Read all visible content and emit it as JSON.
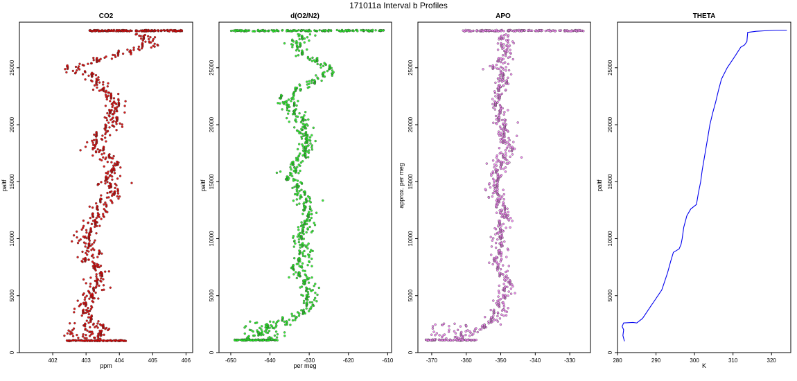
{
  "title": "171011a   Interval b Profiles",
  "chart_data": [
    {
      "type": "scatter",
      "title": "CO2",
      "xlabel": "ppm",
      "ylabel": "paltf",
      "xlim": [
        401.0,
        406.2
      ],
      "ylim": [
        0,
        29000
      ],
      "xticks": [
        "402",
        "403",
        "404",
        "405",
        "406"
      ],
      "yticks": [
        "0",
        "5000",
        "10000",
        "15000",
        "20000",
        "25000"
      ],
      "marker": "open-circle",
      "color": "#dd0000",
      "series": [
        {
          "profile": [
            [
              1200,
              403.3
            ],
            [
              2000,
              403.5
            ],
            [
              3000,
              403.1
            ],
            [
              4000,
              402.9
            ],
            [
              5000,
              403.2
            ],
            [
              6000,
              403.3
            ],
            [
              7000,
              403.4
            ],
            [
              8000,
              403.0
            ],
            [
              9000,
              403.2
            ],
            [
              10000,
              402.9
            ],
            [
              11000,
              403.1
            ],
            [
              12000,
              403.4
            ],
            [
              13000,
              403.5
            ],
            [
              14000,
              403.9
            ],
            [
              15000,
              403.7
            ],
            [
              16000,
              403.8
            ],
            [
              17000,
              403.6
            ],
            [
              18000,
              403.3
            ],
            [
              19000,
              403.4
            ],
            [
              20000,
              403.9
            ],
            [
              21000,
              403.8
            ],
            [
              22000,
              403.9
            ],
            [
              23000,
              403.6
            ],
            [
              24000,
              403.2
            ],
            [
              25000,
              402.6
            ],
            [
              26000,
              403.8
            ],
            [
              27000,
              405.0
            ],
            [
              28200,
              404.5
            ]
          ],
          "spread": 0.45,
          "surface_band": {
            "y": 1050,
            "x": [
              402.4,
              404.2
            ]
          },
          "top_band": {
            "y": 28250,
            "x": [
              403.1,
              405.9
            ]
          },
          "bottom_tail": {
            "y": [
              1200,
              2600
            ],
            "x": [
              402.4,
              403.3
            ]
          }
        }
      ]
    },
    {
      "type": "scatter",
      "title": "d(O2/N2)",
      "xlabel": "per meg",
      "ylabel": "paltf",
      "xlim": [
        -653,
        -609
      ],
      "ylim": [
        0,
        29000
      ],
      "xticks": [
        "-650",
        "-640",
        "-630",
        "-620",
        "-610"
      ],
      "yticks": [
        "0",
        "5000",
        "10000",
        "15000",
        "20000",
        "25000"
      ],
      "marker": "open-circle",
      "color": "#22ee22",
      "series": [
        {
          "profile": [
            [
              1100,
              -646
            ],
            [
              2000,
              -640
            ],
            [
              3000,
              -634
            ],
            [
              4000,
              -629
            ],
            [
              5000,
              -630
            ],
            [
              6000,
              -630
            ],
            [
              7000,
              -633
            ],
            [
              8000,
              -632
            ],
            [
              9000,
              -631
            ],
            [
              10000,
              -633
            ],
            [
              11000,
              -631
            ],
            [
              12000,
              -630
            ],
            [
              13000,
              -631
            ],
            [
              14000,
              -632
            ],
            [
              15000,
              -634
            ],
            [
              16000,
              -635
            ],
            [
              17000,
              -632
            ],
            [
              18000,
              -630
            ],
            [
              19000,
              -631
            ],
            [
              20000,
              -632
            ],
            [
              21000,
              -634
            ],
            [
              22000,
              -636
            ],
            [
              23000,
              -633
            ],
            [
              24000,
              -628
            ],
            [
              25000,
              -625
            ],
            [
              26000,
              -631
            ],
            [
              27000,
              -634
            ],
            [
              28200,
              -630
            ]
          ],
          "spread": 3.5,
          "surface_band": {
            "y": 1100,
            "x": [
              -649,
              -638
            ]
          },
          "top_band": {
            "y": 28250,
            "x": [
              -650,
              -611
            ]
          },
          "bottom_tail": {
            "y": [
              1100,
              2800
            ],
            "x": [
              -647,
              -636
            ]
          }
        }
      ]
    },
    {
      "type": "scatter",
      "title": "APO",
      "xlabel": "",
      "ylabel": "approx. per meg",
      "xlim": [
        -374,
        -324
      ],
      "ylim": [
        0,
        29000
      ],
      "xticks": [
        "-370",
        "-360",
        "-350",
        "-340",
        "-330"
      ],
      "yticks": [
        "0",
        "5000",
        "10000",
        "15000",
        "20000",
        "25000"
      ],
      "marker": "open-circle",
      "color": "#ee82ee",
      "series": [
        {
          "profile": [
            [
              1100,
              -364
            ],
            [
              2000,
              -356
            ],
            [
              3000,
              -352
            ],
            [
              4000,
              -350
            ],
            [
              5000,
              -349
            ],
            [
              6000,
              -348
            ],
            [
              7000,
              -349
            ],
            [
              8000,
              -351
            ],
            [
              9000,
              -350
            ],
            [
              10000,
              -351
            ],
            [
              11000,
              -350
            ],
            [
              12000,
              -349
            ],
            [
              13000,
              -350
            ],
            [
              14000,
              -351
            ],
            [
              15000,
              -352
            ],
            [
              16000,
              -351
            ],
            [
              17000,
              -349
            ],
            [
              18000,
              -348
            ],
            [
              19000,
              -349
            ],
            [
              20000,
              -350
            ],
            [
              21000,
              -350
            ],
            [
              22000,
              -351
            ],
            [
              23000,
              -350
            ],
            [
              24000,
              -349
            ],
            [
              25000,
              -350
            ],
            [
              26000,
              -349
            ],
            [
              27000,
              -349
            ],
            [
              28200,
              -348
            ]
          ],
          "spread": 3.5,
          "surface_band": {
            "y": 1100,
            "x": [
              -372,
              -357
            ]
          },
          "top_band": {
            "y": 28250,
            "x": [
              -361,
              -326
            ]
          },
          "bottom_tail": {
            "y": [
              1100,
              2600
            ],
            "x": [
              -370,
              -358
            ]
          }
        }
      ]
    },
    {
      "type": "line",
      "title": "THETA",
      "xlabel": "K",
      "ylabel": "paltf",
      "xlim": [
        280,
        325
      ],
      "ylim": [
        0,
        29000
      ],
      "xticks": [
        "280",
        "290",
        "300",
        "310",
        "320"
      ],
      "yticks": [
        "0",
        "5000",
        "10000",
        "15000",
        "20000",
        "25000"
      ],
      "color": "#0000ee",
      "series": [
        {
          "points": [
            [
              1000,
              281.8
            ],
            [
              1500,
              281.4
            ],
            [
              2000,
              281.6
            ],
            [
              2300,
              281.2
            ],
            [
              2600,
              281.6
            ],
            [
              2650,
              284.0
            ],
            [
              2600,
              285.0
            ],
            [
              3000,
              286.5
            ],
            [
              3500,
              287.5
            ],
            [
              4000,
              288.5
            ],
            [
              4500,
              289.5
            ],
            [
              5000,
              290.5
            ],
            [
              5500,
              291.5
            ],
            [
              6000,
              292.0
            ],
            [
              7000,
              293.0
            ],
            [
              8000,
              293.8
            ],
            [
              8800,
              294.5
            ],
            [
              9100,
              296.0
            ],
            [
              9500,
              296.5
            ],
            [
              10000,
              296.8
            ],
            [
              11000,
              297.2
            ],
            [
              12000,
              298.0
            ],
            [
              12600,
              299.0
            ],
            [
              13000,
              300.5
            ],
            [
              14000,
              301.0
            ],
            [
              15000,
              301.6
            ],
            [
              16000,
              302.0
            ],
            [
              17000,
              302.5
            ],
            [
              18000,
              303.0
            ],
            [
              19000,
              303.5
            ],
            [
              20000,
              304.0
            ],
            [
              21000,
              304.7
            ],
            [
              22000,
              305.5
            ],
            [
              23000,
              306.2
            ],
            [
              24000,
              307.0
            ],
            [
              25000,
              308.5
            ],
            [
              26000,
              310.5
            ],
            [
              26800,
              312.0
            ],
            [
              27000,
              313.0
            ],
            [
              27300,
              313.6
            ],
            [
              28100,
              313.8
            ],
            [
              28200,
              316.0
            ],
            [
              28300,
              321.0
            ],
            [
              28300,
              324.0
            ]
          ]
        }
      ]
    }
  ]
}
